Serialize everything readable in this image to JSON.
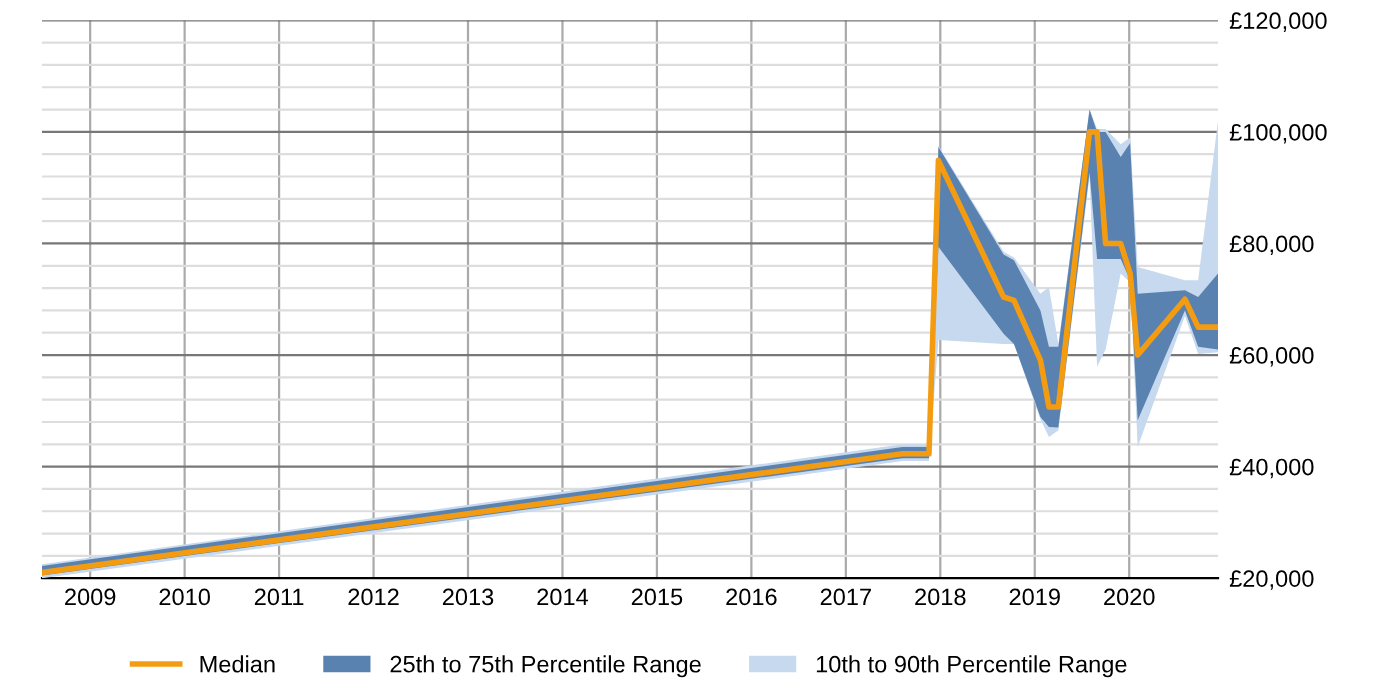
{
  "chart_data": {
    "type": "line",
    "x": [
      2008.49,
      2017.6,
      2017.88,
      2017.98,
      2018.67,
      2018.78,
      2019.06,
      2019.15,
      2019.25,
      2019.58,
      2019.66,
      2019.75,
      2019.91,
      2020.01,
      2020.09,
      2020.59,
      2020.73,
      2020.94
    ],
    "series": [
      {
        "name": "10th to 90th Percentile Range",
        "type": "area",
        "color": "#c6d9ee",
        "values": [
          null,
          null,
          null,
          null,
          null,
          null,
          null,
          null,
          null,
          null,
          null,
          null,
          null,
          null,
          null,
          null,
          null,
          null
        ],
        "lower": [
          20000,
          41000,
          41000,
          62700,
          62000,
          62000,
          48500,
          45300,
          46500,
          92000,
          57900,
          61000,
          74600,
          73000,
          43500,
          67000,
          60200,
          60500
        ],
        "upper": [
          22500,
          44000,
          44000,
          97500,
          78500,
          77500,
          71000,
          72200,
          62000,
          104000,
          100500,
          100500,
          97800,
          99000,
          75800,
          73400,
          73400,
          102000
        ]
      },
      {
        "name": "25th to 75th Percentile Range",
        "type": "area",
        "color": "#5a82b0",
        "values": [
          null,
          null,
          null,
          null,
          null,
          null,
          null,
          null,
          null,
          null,
          null,
          null,
          null,
          null,
          null,
          null,
          null,
          null
        ],
        "lower": [
          20500,
          41500,
          41500,
          79400,
          63800,
          62000,
          48900,
          47100,
          47000,
          92700,
          77200,
          77200,
          77200,
          73400,
          48300,
          68000,
          61500,
          61000
        ],
        "upper": [
          22200,
          43500,
          43500,
          97300,
          78000,
          77000,
          68000,
          61500,
          61500,
          104000,
          100000,
          100000,
          95500,
          98000,
          71000,
          71600,
          70400,
          74600
        ]
      },
      {
        "name": "Median",
        "color": "#f39c12",
        "values": [
          21000,
          42300,
          42300,
          94900,
          70400,
          69800,
          59100,
          50700,
          50700,
          100000,
          100000,
          80000,
          80000,
          74600,
          60000,
          70000,
          65000,
          65000
        ]
      }
    ],
    "xlim": [
      2008.49,
      2020.94
    ],
    "xticks": [
      2009,
      2010,
      2011,
      2012,
      2013,
      2014,
      2015,
      2016,
      2017,
      2018,
      2019,
      2020
    ],
    "ylim": [
      20000,
      120000
    ],
    "yticks": [
      {
        "value": 20000,
        "label": "£20,000"
      },
      {
        "value": 24000,
        "label": null
      },
      {
        "value": 28000,
        "label": null
      },
      {
        "value": 32000,
        "label": null
      },
      {
        "value": 36000,
        "label": null
      },
      {
        "value": 40000,
        "label": "£40,000"
      },
      {
        "value": 44000,
        "label": null
      },
      {
        "value": 48000,
        "label": null
      },
      {
        "value": 52000,
        "label": null
      },
      {
        "value": 56000,
        "label": null
      },
      {
        "value": 60000,
        "label": "£60,000"
      },
      {
        "value": 64000,
        "label": null
      },
      {
        "value": 68000,
        "label": null
      },
      {
        "value": 72000,
        "label": null
      },
      {
        "value": 76000,
        "label": null
      },
      {
        "value": 80000,
        "label": "£80,000"
      },
      {
        "value": 84000,
        "label": null
      },
      {
        "value": 88000,
        "label": null
      },
      {
        "value": 92000,
        "label": null
      },
      {
        "value": 96000,
        "label": null
      },
      {
        "value": 100000,
        "label": "£100,000"
      },
      {
        "value": 104000,
        "label": null
      },
      {
        "value": 108000,
        "label": null
      },
      {
        "value": 112000,
        "label": null
      },
      {
        "value": 116000,
        "label": null
      },
      {
        "value": 120000,
        "label": "£120,000"
      }
    ],
    "grid": true,
    "legend": "bottom",
    "marker": "none",
    "line_style": "solid"
  }
}
